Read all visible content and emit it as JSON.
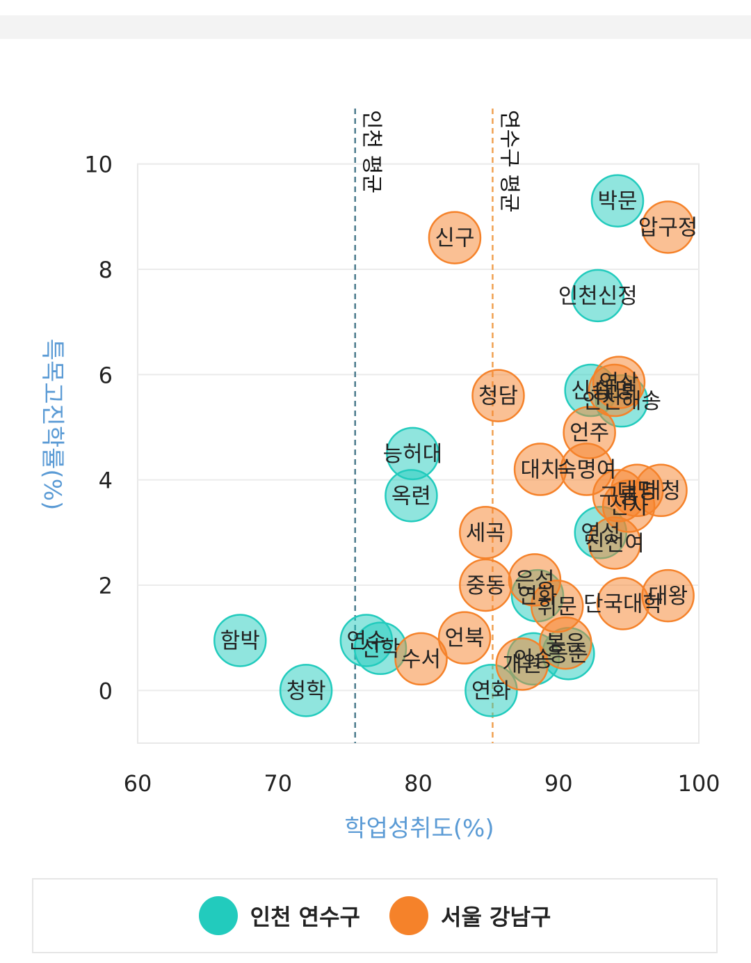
{
  "chart_data": {
    "type": "scatter",
    "xlabel": "학업성취도(%)",
    "ylabel": "특목고진학률(%)",
    "xlim": [
      60,
      100
    ],
    "ylim": [
      -1,
      11
    ],
    "x_ticks": [
      60,
      70,
      80,
      90,
      100
    ],
    "y_ticks": [
      0,
      2,
      4,
      6,
      8,
      10
    ],
    "grid": true,
    "legend_position": "bottom",
    "reference_lines": [
      {
        "label": "인천 평균",
        "x": 75.5,
        "color": "#4a7a8c"
      },
      {
        "label": "연수구 평균",
        "x": 85.3,
        "color": "#f0a050"
      }
    ],
    "series": [
      {
        "name": "인천 연수구",
        "color": "#22cbbd",
        "points": [
          {
            "label": "박문",
            "x": 94.2,
            "y": 9.3
          },
          {
            "label": "인천신정",
            "x": 92.8,
            "y": 7.5
          },
          {
            "label": "신송",
            "x": 92.3,
            "y": 5.7
          },
          {
            "label": "인천해송",
            "x": 94.5,
            "y": 5.5
          },
          {
            "label": "능허대",
            "x": 79.6,
            "y": 4.5
          },
          {
            "label": "옥련",
            "x": 79.5,
            "y": 3.7
          },
          {
            "label": "연성",
            "x": 93.0,
            "y": 3.0
          },
          {
            "label": "연화",
            "x": 88.5,
            "y": 1.8
          },
          {
            "label": "함박",
            "x": 67.3,
            "y": 0.95
          },
          {
            "label": "연수",
            "x": 76.3,
            "y": 0.95
          },
          {
            "label": "선학",
            "x": 77.3,
            "y": 0.8
          },
          {
            "label": "인송",
            "x": 88.2,
            "y": 0.6
          },
          {
            "label": "동춘",
            "x": 90.7,
            "y": 0.7
          },
          {
            "label": "청학",
            "x": 72.0,
            "y": 0.0
          },
          {
            "label": "연화",
            "x": 85.2,
            "y": 0.0
          }
        ]
      },
      {
        "name": "서울 강남구",
        "color": "#f5822a",
        "points": [
          {
            "label": "압구정",
            "x": 97.8,
            "y": 8.8
          },
          {
            "label": "신구",
            "x": 82.6,
            "y": 8.6
          },
          {
            "label": "역삼",
            "x": 94.3,
            "y": 5.85
          },
          {
            "label": "대명",
            "x": 94.0,
            "y": 5.7
          },
          {
            "label": "청담",
            "x": 85.7,
            "y": 5.6
          },
          {
            "label": "언주",
            "x": 92.2,
            "y": 4.9
          },
          {
            "label": "대치",
            "x": 88.7,
            "y": 4.2
          },
          {
            "label": "숙명여",
            "x": 92.0,
            "y": 4.2
          },
          {
            "label": "대청",
            "x": 97.3,
            "y": 3.8
          },
          {
            "label": "대명",
            "x": 95.6,
            "y": 3.8
          },
          {
            "label": "구룡",
            "x": 94.3,
            "y": 3.7
          },
          {
            "label": "신사",
            "x": 95.0,
            "y": 3.5
          },
          {
            "label": "세곡",
            "x": 84.8,
            "y": 3.0
          },
          {
            "label": "진선여",
            "x": 94.0,
            "y": 2.8
          },
          {
            "label": "중동",
            "x": 84.8,
            "y": 2.0
          },
          {
            "label": "은성",
            "x": 88.3,
            "y": 2.1
          },
          {
            "label": "대왕",
            "x": 97.8,
            "y": 1.8
          },
          {
            "label": "단국대학",
            "x": 94.6,
            "y": 1.65
          },
          {
            "label": "휘문",
            "x": 89.9,
            "y": 1.6
          },
          {
            "label": "언북",
            "x": 83.3,
            "y": 1.0
          },
          {
            "label": "수서",
            "x": 80.2,
            "y": 0.6
          },
          {
            "label": "봉은",
            "x": 90.5,
            "y": 0.9
          },
          {
            "label": "개원",
            "x": 87.4,
            "y": 0.5
          }
        ]
      }
    ]
  },
  "legend": [
    {
      "label": "인천 연수구",
      "color": "#22cbbd"
    },
    {
      "label": "서울 강남구",
      "color": "#f5822a"
    }
  ]
}
